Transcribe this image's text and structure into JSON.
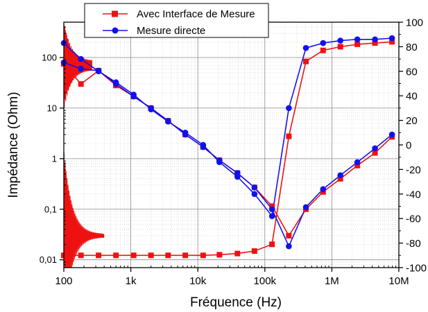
{
  "chart_data": {
    "type": "line",
    "title": "",
    "xlabel": "Fréquence (Hz)",
    "ylabel_left": "Impédance (Ohm)",
    "ylabel_right": "",
    "x_scale": "log",
    "y_left_scale": "log",
    "xlim": [
      100,
      10000000
    ],
    "ylim_left": [
      0.007,
      500
    ],
    "ylim_right": [
      -100,
      100
    ],
    "grid": true,
    "legend_position": "top-center",
    "x_ticks": [
      {
        "value": 100,
        "label": "100"
      },
      {
        "value": 1000,
        "label": "1k"
      },
      {
        "value": 10000,
        "label": "10k"
      },
      {
        "value": 100000,
        "label": "100k"
      },
      {
        "value": 1000000,
        "label": "1M"
      },
      {
        "value": 10000000,
        "label": "10M"
      }
    ],
    "y_left_ticks": [
      {
        "value": 0.01,
        "label": "0,01"
      },
      {
        "value": 0.1,
        "label": "0,1"
      },
      {
        "value": 1,
        "label": "1"
      },
      {
        "value": 10,
        "label": "10"
      },
      {
        "value": 100,
        "label": "100"
      }
    ],
    "y_right_ticks": [
      {
        "value": 100,
        "label": "100"
      },
      {
        "value": 80,
        "label": "80"
      },
      {
        "value": 60,
        "label": "60"
      },
      {
        "value": 40,
        "label": "40"
      },
      {
        "value": 20,
        "label": "20"
      },
      {
        "value": 0,
        "label": "0"
      },
      {
        "value": -20,
        "label": "-20"
      },
      {
        "value": -40,
        "label": "-40"
      },
      {
        "value": -60,
        "label": "-60"
      },
      {
        "value": -80,
        "label": "-80"
      },
      {
        "value": -100,
        "label": "-100"
      }
    ],
    "series": [
      {
        "name": "Avec Interface de Mesure",
        "color": "#ee1111",
        "marker": "square",
        "impedance": {
          "x": [
            100,
            180,
            330,
            600,
            1100,
            2000,
            3600,
            6500,
            12000,
            21000,
            39000,
            70000,
            128000,
            228000,
            410000,
            740000,
            1340000,
            2400000,
            4400000,
            7900000
          ],
          "y": [
            75,
            30,
            55,
            28,
            17,
            10,
            5.6,
            3.0,
            1.7,
            0.93,
            0.52,
            0.27,
            0.115,
            0.03,
            0.1,
            0.22,
            0.4,
            0.73,
            1.3,
            2.7
          ]
        },
        "phase": {
          "x": [
            100,
            180,
            330,
            600,
            1100,
            2000,
            3600,
            6500,
            12000,
            21000,
            39000,
            70000,
            128000,
            228000,
            410000,
            740000,
            1340000,
            2400000,
            4400000,
            7900000
          ],
          "y": [
            -90,
            -90,
            -90,
            -90,
            -90,
            -90,
            -90,
            -90,
            -90,
            -89.5,
            -88.5,
            -86.5,
            -81,
            7,
            68,
            77,
            80,
            82,
            83,
            84
          ]
        }
      },
      {
        "name": "Mesure directe",
        "color": "#1111ee",
        "marker": "circle",
        "impedance": {
          "x": [
            100,
            180,
            330,
            600,
            1100,
            2000,
            3600,
            6500,
            12000,
            21000,
            39000,
            70000,
            128000,
            228000,
            410000,
            740000,
            1340000,
            2400000,
            4400000,
            7900000
          ],
          "y": [
            80,
            60,
            55,
            30,
            17,
            10,
            5.6,
            3.0,
            1.7,
            0.93,
            0.52,
            0.27,
            0.1,
            0.0185,
            0.11,
            0.25,
            0.47,
            0.85,
            1.6,
            3.0
          ]
        },
        "phase": {
          "x": [
            100,
            180,
            330,
            600,
            1100,
            2000,
            3600,
            6500,
            12000,
            21000,
            39000,
            70000,
            128000,
            228000,
            410000,
            740000,
            1340000,
            2400000,
            4400000,
            7900000
          ],
          "y": [
            83,
            70,
            60,
            51,
            41,
            29,
            19,
            10,
            0,
            -14,
            -26,
            -40,
            -58,
            30,
            79,
            83,
            85,
            86,
            86,
            87
          ]
        }
      }
    ]
  }
}
